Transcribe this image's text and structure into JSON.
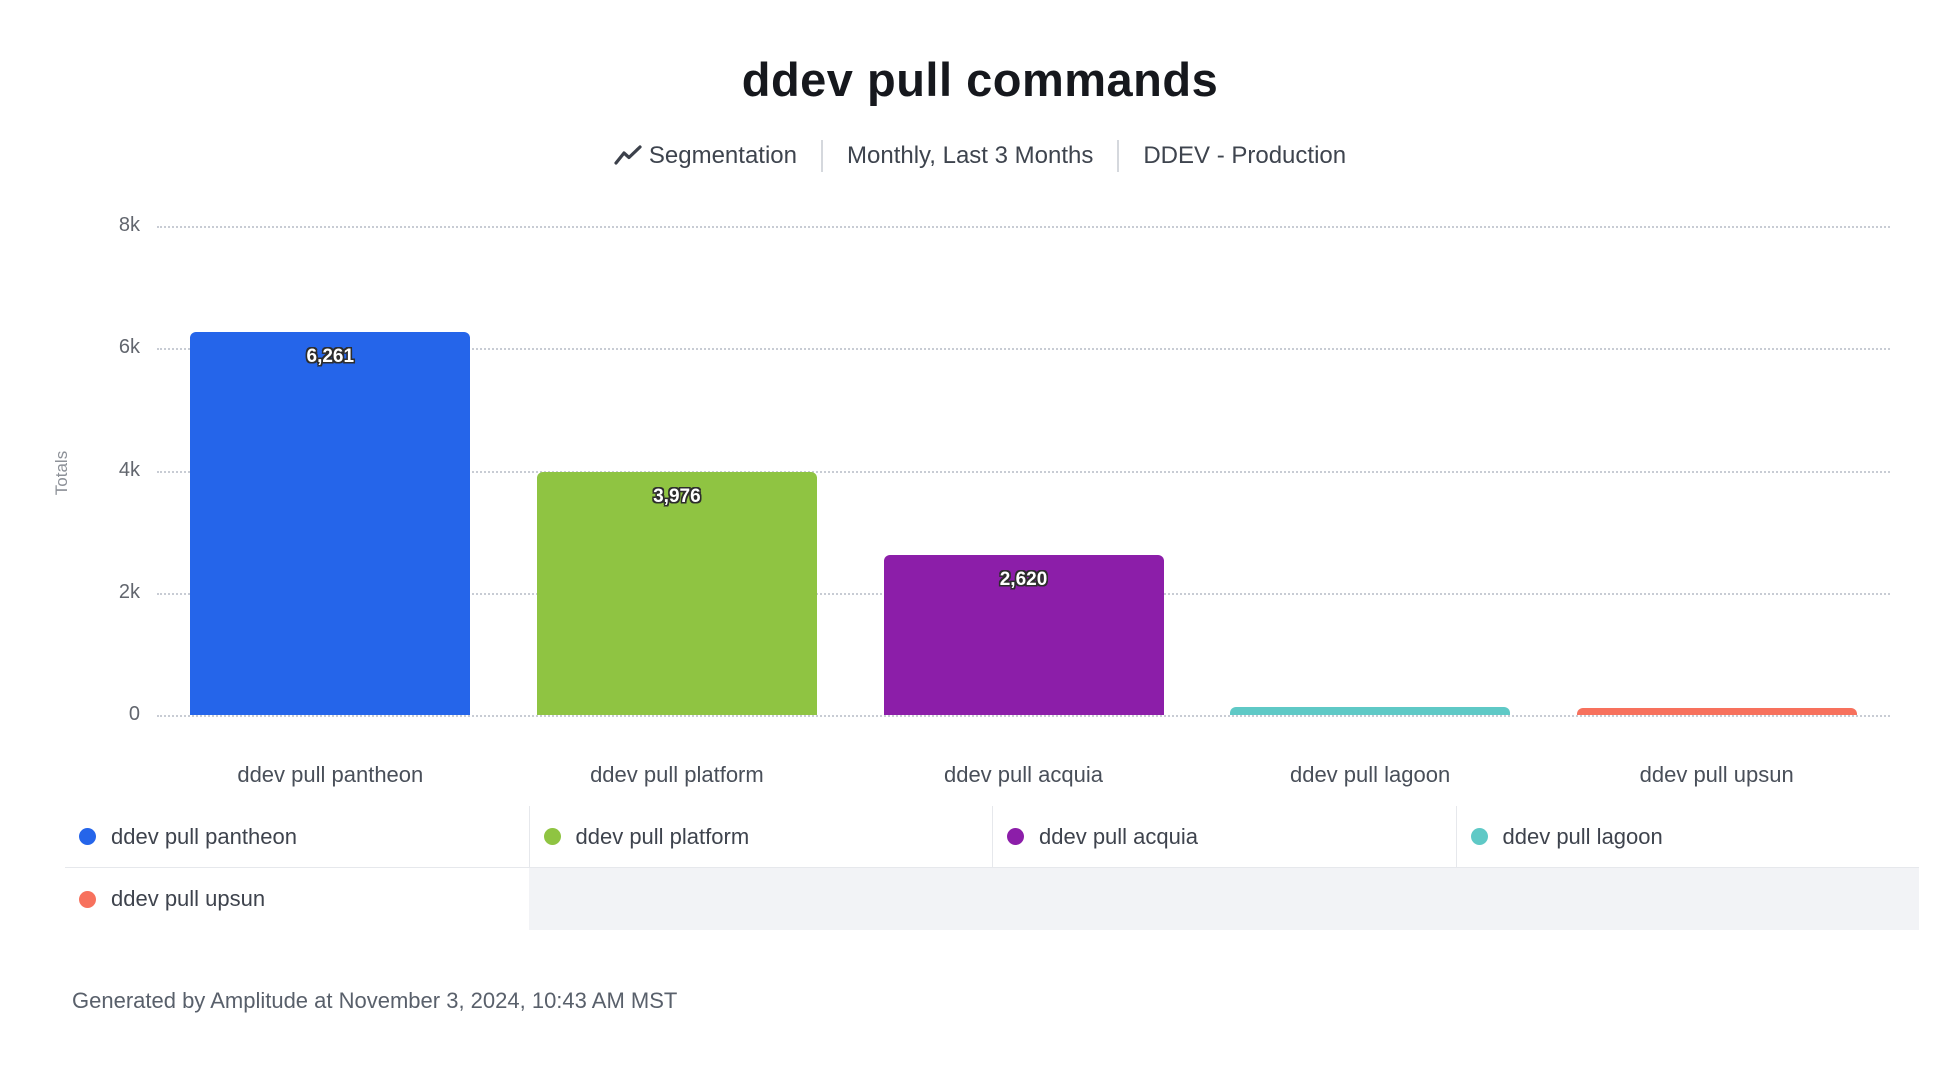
{
  "header": {
    "title": "ddev pull commands",
    "chart_type_label": "Segmentation",
    "date_range": "Monthly, Last 3 Months",
    "project": "DDEV - Production"
  },
  "chart_data": {
    "type": "bar",
    "title": "ddev pull commands",
    "xlabel": "",
    "ylabel": "Totals",
    "ylim": [
      0,
      8000
    ],
    "yticks": [
      {
        "value": 0,
        "label": "0"
      },
      {
        "value": 2000,
        "label": "2k"
      },
      {
        "value": 4000,
        "label": "4k"
      },
      {
        "value": 6000,
        "label": "6k"
      },
      {
        "value": 8000,
        "label": "8k"
      }
    ],
    "grid": "horizontal dotted gridlines on",
    "legend_position": "bottom",
    "categories": [
      "ddev pull pantheon",
      "ddev pull platform",
      "ddev pull acquia",
      "ddev pull lagoon",
      "ddev pull upsun"
    ],
    "values": [
      6261,
      3976,
      2620,
      130,
      100
    ],
    "value_labels": [
      "6,261",
      "3,976",
      "2,620",
      "",
      ""
    ],
    "colors": [
      "#2565ea",
      "#8fc442",
      "#8c1ea9",
      "#5fc9c6",
      "#f7715d"
    ]
  },
  "legend": {
    "items": [
      {
        "label": "ddev pull pantheon",
        "color": "#2565ea"
      },
      {
        "label": "ddev pull platform",
        "color": "#8fc442"
      },
      {
        "label": "ddev pull acquia",
        "color": "#8c1ea9"
      },
      {
        "label": "ddev pull lagoon",
        "color": "#5fc9c6"
      },
      {
        "label": "ddev pull upsun",
        "color": "#f7715d"
      }
    ]
  },
  "footer": {
    "generated_text": "Generated by Amplitude at November 3, 2024, 10:43 AM MST"
  }
}
